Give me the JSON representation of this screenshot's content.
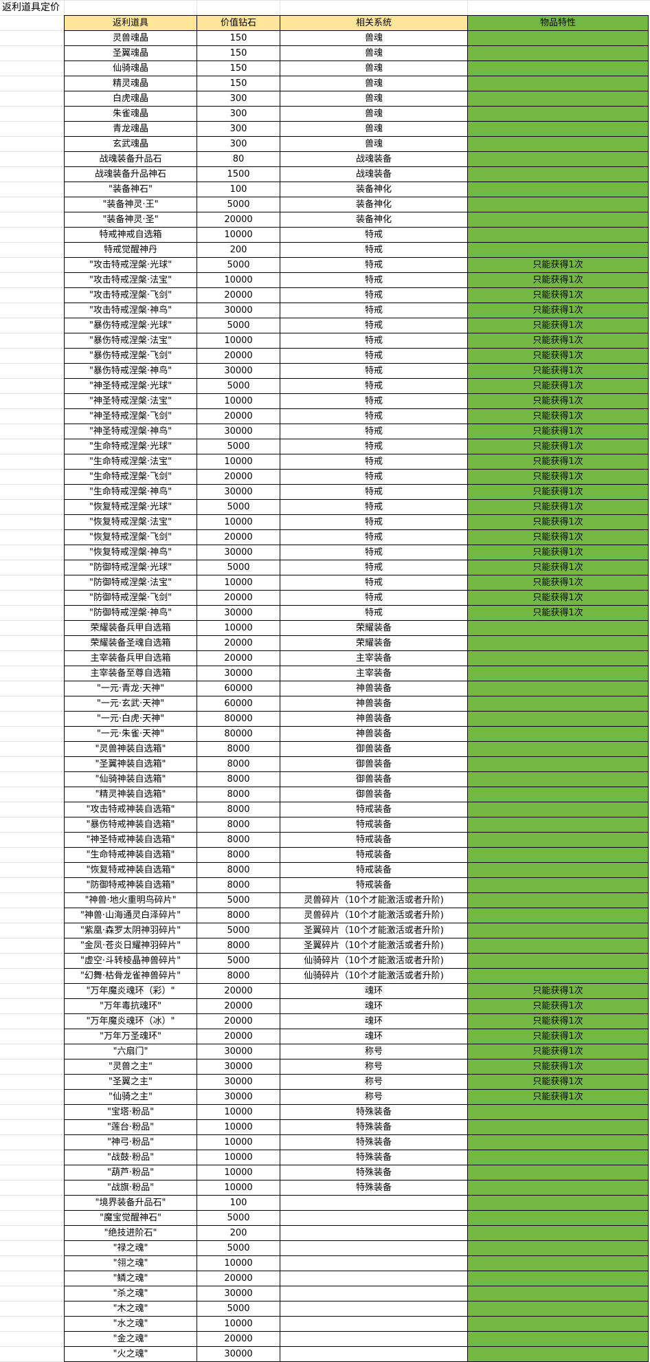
{
  "sheet_title": "返利道具定价",
  "colors": {
    "header_bg": "#FFE699",
    "feature_bg": "#72B843"
  },
  "table": {
    "headers": [
      "返利道具",
      "价值钻石",
      "相关系统",
      "物品特性"
    ],
    "rows": [
      [
        "灵兽魂晶",
        "150",
        "兽魂",
        ""
      ],
      [
        "圣翼魂晶",
        "150",
        "兽魂",
        ""
      ],
      [
        "仙骑魂晶",
        "150",
        "兽魂",
        ""
      ],
      [
        "精灵魂晶",
        "150",
        "兽魂",
        ""
      ],
      [
        "白虎魂晶",
        "300",
        "兽魂",
        ""
      ],
      [
        "朱雀魂晶",
        "300",
        "兽魂",
        ""
      ],
      [
        "青龙魂晶",
        "300",
        "兽魂",
        ""
      ],
      [
        "玄武魂晶",
        "300",
        "兽魂",
        ""
      ],
      [
        "战魂装备升品石",
        "80",
        "战魂装备",
        ""
      ],
      [
        "战魂装备升品神石",
        "1500",
        "战魂装备",
        ""
      ],
      [
        "\"装备神石\"",
        "100",
        "装备神化",
        ""
      ],
      [
        "\"装备神灵·王\"",
        "5000",
        "装备神化",
        ""
      ],
      [
        "\"装备神灵·圣\"",
        "20000",
        "装备神化",
        ""
      ],
      [
        "特戒神戒自选箱",
        "10000",
        "特戒",
        ""
      ],
      [
        "特戒觉醒神丹",
        "200",
        "特戒",
        ""
      ],
      [
        "\"攻击特戒涅槃·光球\"",
        "5000",
        "特戒",
        "只能获得1次"
      ],
      [
        "\"攻击特戒涅槃·法宝\"",
        "10000",
        "特戒",
        "只能获得1次"
      ],
      [
        "\"攻击特戒涅槃·飞剑\"",
        "20000",
        "特戒",
        "只能获得1次"
      ],
      [
        "\"攻击特戒涅槃·神鸟\"",
        "30000",
        "特戒",
        "只能获得1次"
      ],
      [
        "\"暴伤特戒涅槃·光球\"",
        "5000",
        "特戒",
        "只能获得1次"
      ],
      [
        "\"暴伤特戒涅槃·法宝\"",
        "10000",
        "特戒",
        "只能获得1次"
      ],
      [
        "\"暴伤特戒涅槃·飞剑\"",
        "20000",
        "特戒",
        "只能获得1次"
      ],
      [
        "\"暴伤特戒涅槃·神鸟\"",
        "30000",
        "特戒",
        "只能获得1次"
      ],
      [
        "\"神圣特戒涅槃·光球\"",
        "5000",
        "特戒",
        "只能获得1次"
      ],
      [
        "\"神圣特戒涅槃·法宝\"",
        "10000",
        "特戒",
        "只能获得1次"
      ],
      [
        "\"神圣特戒涅槃·飞剑\"",
        "20000",
        "特戒",
        "只能获得1次"
      ],
      [
        "\"神圣特戒涅槃·神鸟\"",
        "30000",
        "特戒",
        "只能获得1次"
      ],
      [
        "\"生命特戒涅槃·光球\"",
        "5000",
        "特戒",
        "只能获得1次"
      ],
      [
        "\"生命特戒涅槃·法宝\"",
        "10000",
        "特戒",
        "只能获得1次"
      ],
      [
        "\"生命特戒涅槃·飞剑\"",
        "20000",
        "特戒",
        "只能获得1次"
      ],
      [
        "\"生命特戒涅槃·神鸟\"",
        "30000",
        "特戒",
        "只能获得1次"
      ],
      [
        "\"恢复特戒涅槃·光球\"",
        "5000",
        "特戒",
        "只能获得1次"
      ],
      [
        "\"恢复特戒涅槃·法宝\"",
        "10000",
        "特戒",
        "只能获得1次"
      ],
      [
        "\"恢复特戒涅槃·飞剑\"",
        "20000",
        "特戒",
        "只能获得1次"
      ],
      [
        "\"恢复特戒涅槃·神鸟\"",
        "30000",
        "特戒",
        "只能获得1次"
      ],
      [
        "\"防御特戒涅槃·光球\"",
        "5000",
        "特戒",
        "只能获得1次"
      ],
      [
        "\"防御特戒涅槃·法宝\"",
        "10000",
        "特戒",
        "只能获得1次"
      ],
      [
        "\"防御特戒涅槃·飞剑\"",
        "20000",
        "特戒",
        "只能获得1次"
      ],
      [
        "\"防御特戒涅槃·神鸟\"",
        "30000",
        "特戒",
        "只能获得1次"
      ],
      [
        "荣耀装备兵甲自选箱",
        "10000",
        "荣耀装备",
        ""
      ],
      [
        "荣耀装备圣魂自选箱",
        "20000",
        "荣耀装备",
        ""
      ],
      [
        "主宰装备兵甲自选箱",
        "20000",
        "主宰装备",
        ""
      ],
      [
        "主宰装备至尊自选箱",
        "30000",
        "主宰装备",
        ""
      ],
      [
        "\"一元·青龙·天神\"",
        "60000",
        "神兽装备",
        ""
      ],
      [
        "\"一元·玄武·天神\"",
        "60000",
        "神兽装备",
        ""
      ],
      [
        "\"一元·白虎·天神\"",
        "80000",
        "神兽装备",
        ""
      ],
      [
        "\"一元·朱雀·天神\"",
        "80000",
        "神兽装备",
        ""
      ],
      [
        "\"灵兽神装自选箱\"",
        "8000",
        "御兽装备",
        ""
      ],
      [
        "\"圣翼神装自选箱\"",
        "8000",
        "御兽装备",
        ""
      ],
      [
        "\"仙骑神装自选箱\"",
        "8000",
        "御兽装备",
        ""
      ],
      [
        "\"精灵神装自选箱\"",
        "8000",
        "御兽装备",
        ""
      ],
      [
        "\"攻击特戒神装自选箱\"",
        "8000",
        "特戒装备",
        ""
      ],
      [
        "\"暴伤特戒神装自选箱\"",
        "8000",
        "特戒装备",
        ""
      ],
      [
        "\"神圣特戒神装自选箱\"",
        "8000",
        "特戒装备",
        ""
      ],
      [
        "\"生命特戒神装自选箱\"",
        "8000",
        "特戒装备",
        ""
      ],
      [
        "\"恢复特戒神装自选箱\"",
        "8000",
        "特戒装备",
        ""
      ],
      [
        "\"防御特戒神装自选箱\"",
        "8000",
        "特戒装备",
        ""
      ],
      [
        "\"神兽·地火重明鸟碎片\"",
        "5000",
        "灵兽碎片（10个才能激活或者升阶)",
        ""
      ],
      [
        "\"神兽·山海通灵白泽碎片\"",
        "8000",
        "灵兽碎片（10个才能激活或者升阶)",
        ""
      ],
      [
        "\"紫凰·森罗太阴神羽碎片\"",
        "5000",
        "圣翼碎片（10个才能激活或者升阶)",
        ""
      ],
      [
        "\"金凤·苍炎日耀神羽碎片\"",
        "8000",
        "圣翼碎片（10个才能激活或者升阶)",
        ""
      ],
      [
        "\"虚空·斗转棱晶神兽碎片\"",
        "5000",
        "仙骑碎片（10个才能激活或者升阶)",
        ""
      ],
      [
        "\"幻舞·枯骨龙雀神兽碎片\"",
        "8000",
        "仙骑碎片（10个才能激活或者升阶)",
        ""
      ],
      [
        "\"万年魔炎魂环（彩）\"",
        "20000",
        "魂环",
        "只能获得1次"
      ],
      [
        "\"万年毒抗魂环\"",
        "20000",
        "魂环",
        "只能获得1次"
      ],
      [
        "\"万年魔炎魂环（冰）\"",
        "20000",
        "魂环",
        "只能获得1次"
      ],
      [
        "\"万年万圣魂环\"",
        "20000",
        "魂环",
        "只能获得1次"
      ],
      [
        "\"六扇门\"",
        "30000",
        "称号",
        "只能获得1次"
      ],
      [
        "\"灵兽之主\"",
        "30000",
        "称号",
        "只能获得1次"
      ],
      [
        "\"圣翼之主\"",
        "30000",
        "称号",
        "只能获得1次"
      ],
      [
        "\"仙骑之主\"",
        "30000",
        "称号",
        "只能获得1次"
      ],
      [
        "\"宝塔·粉品\"",
        "10000",
        "特殊装备",
        ""
      ],
      [
        "\"莲台·粉品\"",
        "10000",
        "特殊装备",
        ""
      ],
      [
        "\"神弓·粉品\"",
        "10000",
        "特殊装备",
        ""
      ],
      [
        "\"战鼓·粉品\"",
        "10000",
        "特殊装备",
        ""
      ],
      [
        "\"葫芦·粉品\"",
        "10000",
        "特殊装备",
        ""
      ],
      [
        "\"战旗·粉品\"",
        "10000",
        "特殊装备",
        ""
      ],
      [
        "\"境界装备升品石\"",
        "100",
        "",
        ""
      ],
      [
        "\"魔宝觉醒神石\"",
        "5000",
        "",
        ""
      ],
      [
        "\"绝技进阶石\"",
        "200",
        "",
        ""
      ],
      [
        "\"禄之魂\"",
        "5000",
        "",
        ""
      ],
      [
        "\"翎之魂\"",
        "10000",
        "",
        ""
      ],
      [
        "\"鳞之魂\"",
        "20000",
        "",
        ""
      ],
      [
        "\"杀之魂\"",
        "30000",
        "",
        ""
      ],
      [
        "\"木之魂\"",
        "5000",
        "",
        ""
      ],
      [
        "\"水之魂\"",
        "10000",
        "",
        ""
      ],
      [
        "\"金之魂\"",
        "20000",
        "",
        ""
      ],
      [
        "\"火之魂\"",
        "30000",
        "",
        ""
      ]
    ]
  }
}
